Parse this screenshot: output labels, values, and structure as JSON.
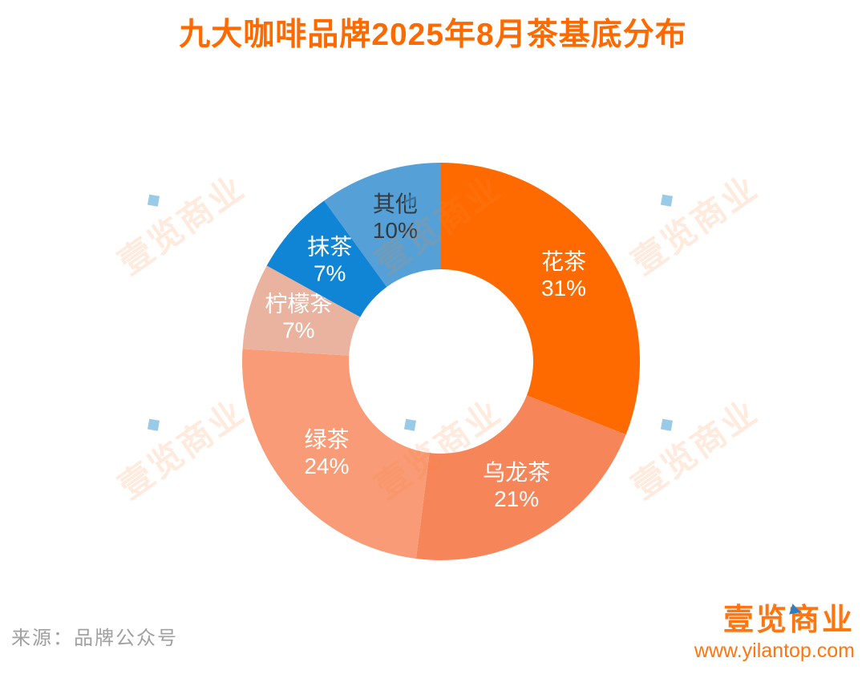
{
  "title": "九大咖啡品牌2025年8月茶基底分布",
  "chart_data": {
    "type": "pie",
    "donut": true,
    "start_angle": "top",
    "direction": "clockwise",
    "legend": "none",
    "label_format": "name + newline + value%",
    "slices": [
      {
        "label": "花茶",
        "value": 31,
        "color": "#FF6A00",
        "label_color": "#FFFFFF"
      },
      {
        "label": "乌龙茶",
        "value": 21,
        "color": "#F7855A",
        "label_color": "#FFFFFF"
      },
      {
        "label": "绿茶",
        "value": 24,
        "color": "#F99B76",
        "label_color": "#FFFFFF"
      },
      {
        "label": "柠檬茶",
        "value": 7,
        "color": "#E9B3A0",
        "label_color": "#FFFFFF"
      },
      {
        "label": "抹茶",
        "value": 7,
        "color": "#1085D6",
        "label_color": "#FFFFFF"
      },
      {
        "label": "其他",
        "value": 10,
        "color": "#55A0D7",
        "label_color": "#333A40"
      }
    ]
  },
  "watermark": {
    "text": "壹览商业"
  },
  "footer": {
    "source": "来源：品牌公众号",
    "brand": "壹览商业",
    "website": "www.yilantop.com"
  },
  "colors": {
    "title": "#FF6A00",
    "brand_orange": "#FF7510",
    "brand_blue": "#2E7FC1",
    "source_gray": "#A0A0A0"
  }
}
